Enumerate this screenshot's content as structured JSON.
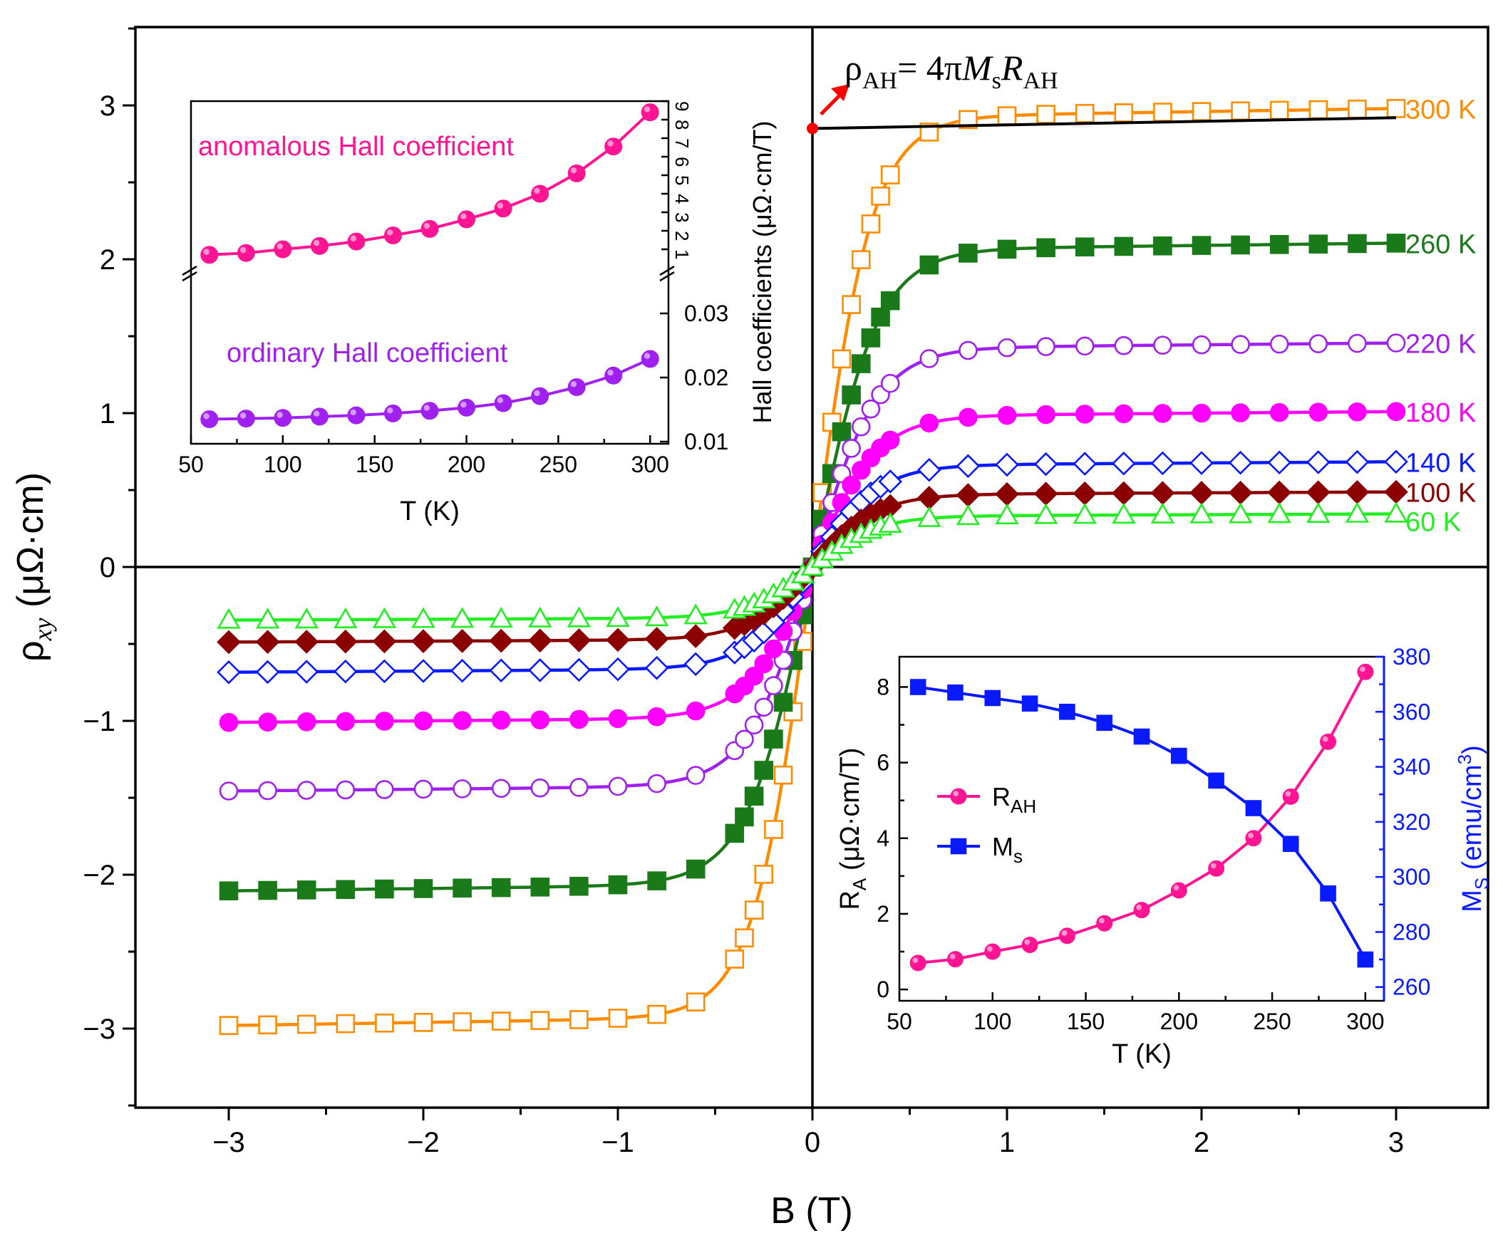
{
  "chart_data": [
    {
      "type": "line",
      "xlabel": "B (T)",
      "ylabel": "ρxy (μΩ·cm)",
      "xlim": [
        -3.5,
        3.5
      ],
      "ylim": [
        -3.5,
        3.5
      ],
      "xticks": [
        "−3",
        "−2",
        "−1",
        "0",
        "1",
        "2",
        "3"
      ],
      "yticks": [
        "−3",
        "−2",
        "−1",
        "0",
        "1",
        "2",
        "3"
      ],
      "formula": {
        "lhs": "ρ",
        "lhs_sub": "AH",
        "eq": "= 4π",
        "M": "M",
        "M_sub": "s",
        "R": "R",
        "R_sub": "AH"
      },
      "intercept_value": 2.85,
      "fit_line": {
        "x": [
          0,
          3
        ],
        "y": [
          2.85,
          2.92
        ],
        "color": "#000000"
      },
      "series": [
        {
          "name": "300 K",
          "color": "#ff8c00",
          "marker": "square-open",
          "ms": 2.92,
          "k": 0.3,
          "lin": 0.02
        },
        {
          "name": "260 K",
          "color": "#1a7a1a",
          "marker": "square-filled",
          "ms": 2.06,
          "k": 0.33,
          "lin": 0.015
        },
        {
          "name": "220 K",
          "color": "#a020f0",
          "marker": "circle-open",
          "ms": 1.42,
          "k": 0.33,
          "lin": 0.012
        },
        {
          "name": "180 K",
          "color": "#ff00ff",
          "marker": "circle-filled",
          "ms": 0.98,
          "k": 0.33,
          "lin": 0.01
        },
        {
          "name": "140 K",
          "color": "#0a1aff",
          "marker": "diamond-open",
          "ms": 0.66,
          "k": 0.33,
          "lin": 0.008
        },
        {
          "name": "100 K",
          "color": "#8b0000",
          "marker": "diamond-filled",
          "ms": 0.47,
          "k": 0.33,
          "lin": 0.006
        },
        {
          "name": "60 K",
          "color": "#22ee22",
          "marker": "triangle-open",
          "ms": 0.33,
          "k": 0.33,
          "lin": 0.005
        }
      ]
    },
    {
      "type": "line",
      "xlabel": "T (K)",
      "ylabel": "Hall coefficients (μΩ·cm/T)",
      "xlim": [
        50,
        310
      ],
      "xticks": [
        "50",
        "100",
        "150",
        "200",
        "250",
        "300"
      ],
      "upper_ticks": [
        "1",
        "2",
        "3",
        "4",
        "5",
        "6",
        "7",
        "8",
        "9"
      ],
      "lower_ticks": [
        "0.01",
        "0.02",
        "0.03"
      ],
      "series": [
        {
          "name": "anomalous Hall coefficient",
          "color": "#ff1493",
          "x": [
            60,
            80,
            100,
            120,
            140,
            160,
            180,
            200,
            220,
            240,
            260,
            280,
            300
          ],
          "y": [
            0.7,
            0.8,
            1.0,
            1.18,
            1.42,
            1.75,
            2.1,
            2.62,
            3.2,
            4.0,
            5.1,
            6.55,
            8.4
          ]
        },
        {
          "name": "ordinary Hall coefficient",
          "color": "#a020f0",
          "x": [
            60,
            80,
            100,
            120,
            140,
            160,
            180,
            200,
            220,
            240,
            260,
            280,
            300
          ],
          "y": [
            0.0135,
            0.0136,
            0.0137,
            0.0139,
            0.0141,
            0.0144,
            0.0148,
            0.0153,
            0.016,
            0.0171,
            0.0185,
            0.0203,
            0.0229
          ]
        }
      ]
    },
    {
      "type": "line",
      "xlabel": "T (K)",
      "ylabel_left": "RA (μΩ·cm/T)",
      "ylabel_right": "MS (emu/cm3)",
      "xlim": [
        50,
        310
      ],
      "ylim_left": [
        -0.3,
        8.8
      ],
      "ylim_right": [
        255,
        380
      ],
      "xticks": [
        "50",
        "100",
        "150",
        "200",
        "250",
        "300"
      ],
      "yticks_left": [
        "0",
        "2",
        "4",
        "6",
        "8"
      ],
      "yticks_right": [
        "260",
        "280",
        "300",
        "320",
        "340",
        "360",
        "380"
      ],
      "series": [
        {
          "name": "RAH",
          "label": "R",
          "label_sub": "AH",
          "color": "#ff1493",
          "axis": "left",
          "x": [
            60,
            80,
            100,
            120,
            140,
            160,
            180,
            200,
            220,
            240,
            260,
            280,
            300
          ],
          "y": [
            0.7,
            0.8,
            1.0,
            1.18,
            1.42,
            1.75,
            2.1,
            2.62,
            3.2,
            4.0,
            5.1,
            6.55,
            8.4
          ]
        },
        {
          "name": "Ms",
          "label": "M",
          "label_sub": "s",
          "color": "#0a1aff",
          "axis": "right",
          "x": [
            60,
            80,
            100,
            120,
            140,
            160,
            180,
            200,
            220,
            240,
            260,
            280,
            300
          ],
          "y": [
            369,
            367,
            365,
            363,
            360,
            356,
            351,
            344,
            335,
            325,
            312,
            294,
            270
          ]
        }
      ]
    }
  ]
}
